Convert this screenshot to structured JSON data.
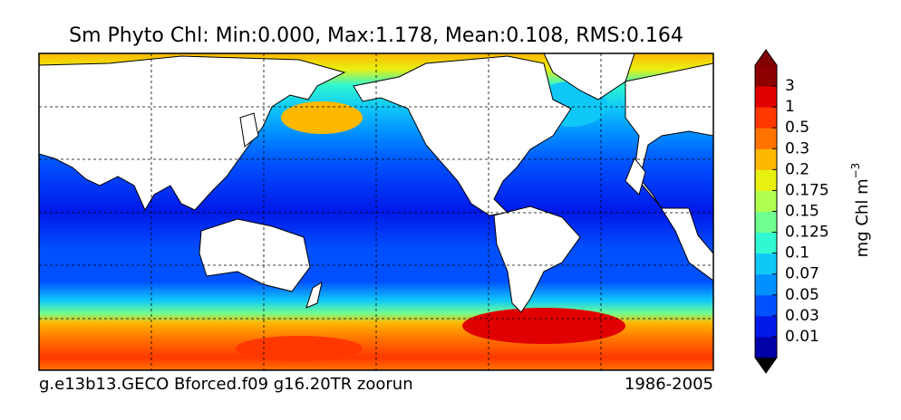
{
  "title": "Sm Phyto Chl: Min:0.000, Max:1.178, Mean:0.108, RMS:0.164",
  "footer": {
    "left": "g.e13b13.GECO Bforced.f09 g16.20TR zoorun",
    "right": "1986-2005"
  },
  "colorbar": {
    "label": "mg Chl m",
    "label_exponent": "−3",
    "ticks": [
      0.01,
      0.03,
      0.05,
      0.07,
      0.1,
      0.125,
      0.15,
      0.175,
      0.2,
      0.3,
      0.5,
      1,
      3
    ],
    "colors": [
      "#0000a8",
      "#0018e8",
      "#0050ff",
      "#0090ff",
      "#10c8f8",
      "#30f8d0",
      "#70ff90",
      "#b0ff50",
      "#e8f010",
      "#ffb800",
      "#ff7400",
      "#ff3800",
      "#e00000",
      "#8c0000"
    ],
    "under_color": "#000000",
    "over_color": "#800000"
  }
}
